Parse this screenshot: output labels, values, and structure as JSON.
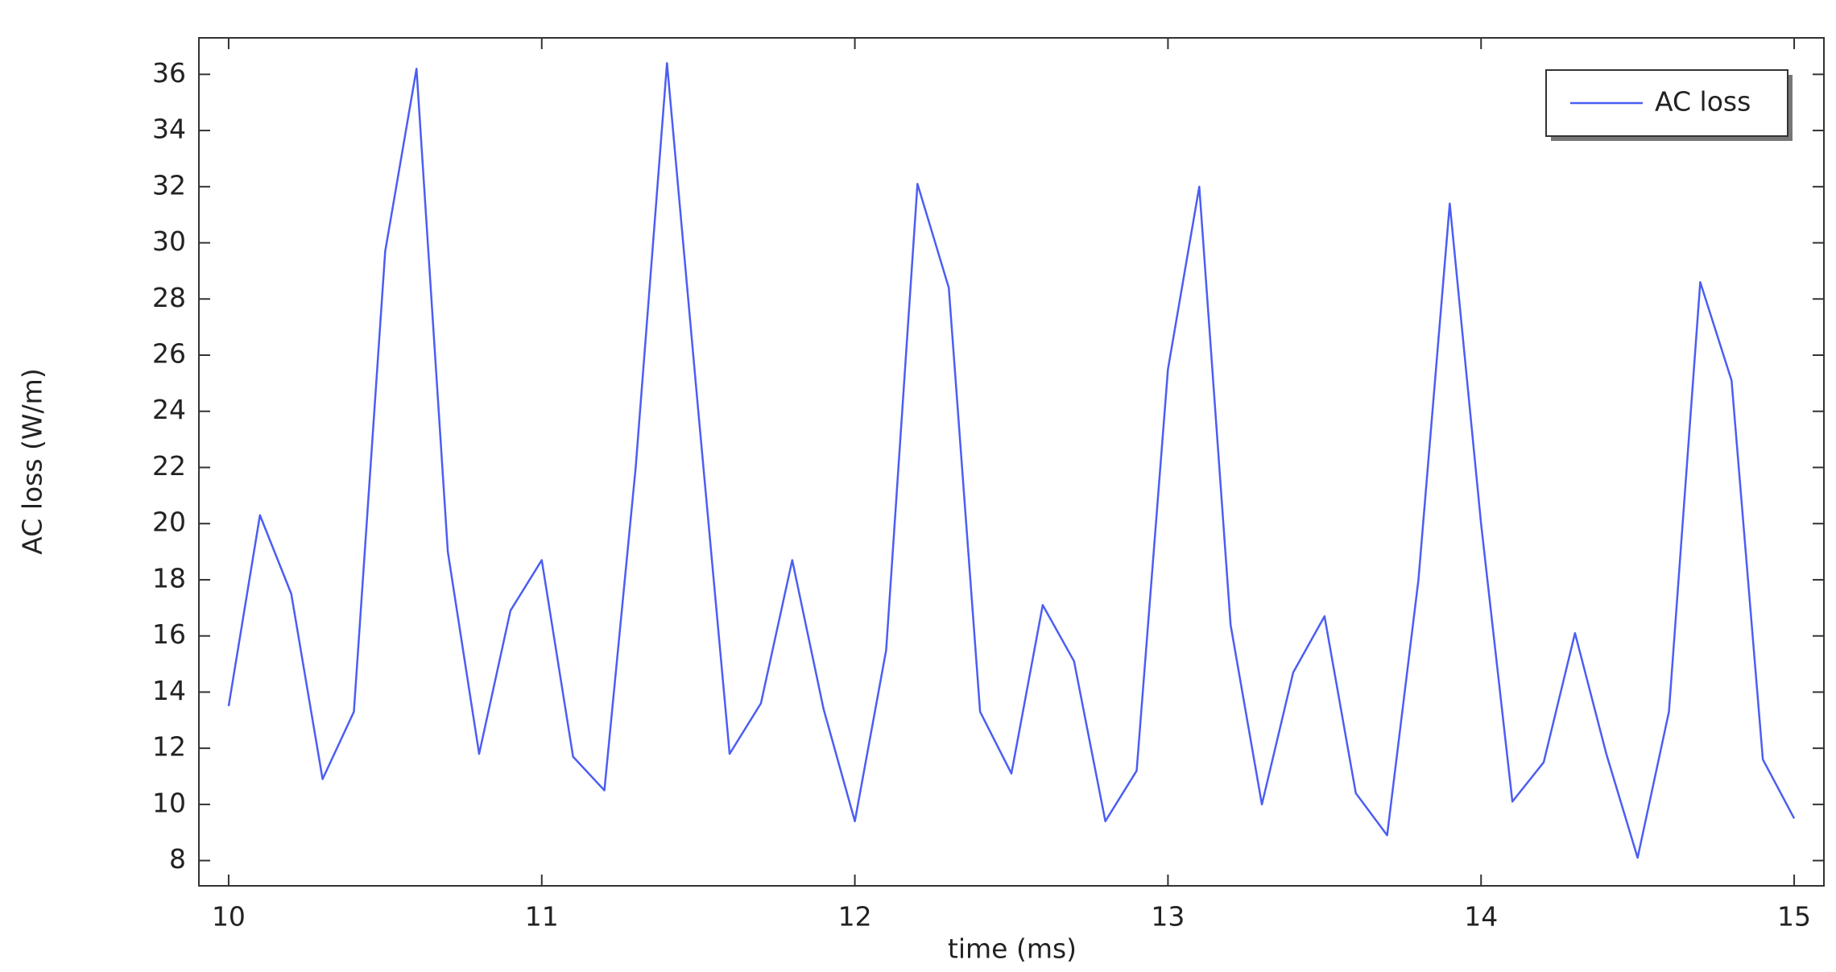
{
  "chart_data": {
    "type": "line",
    "xlabel": "time (ms)",
    "ylabel": "AC loss (W/m)",
    "x": [
      10.0,
      10.1,
      10.2,
      10.3,
      10.4,
      10.5,
      10.6,
      10.7,
      10.8,
      10.9,
      11.0,
      11.1,
      11.2,
      11.3,
      11.4,
      11.5,
      11.6,
      11.7,
      11.8,
      11.9,
      12.0,
      12.1,
      12.2,
      12.3,
      12.4,
      12.5,
      12.6,
      12.7,
      12.8,
      12.9,
      13.0,
      13.1,
      13.2,
      13.3,
      13.4,
      13.5,
      13.6,
      13.7,
      13.8,
      13.9,
      14.0,
      14.1,
      14.2,
      14.3,
      14.4,
      14.5,
      14.6,
      14.7,
      14.8,
      14.9,
      15.0
    ],
    "series": [
      {
        "name": "AC loss",
        "color": "#4b5ef2",
        "values": [
          13.5,
          20.3,
          17.5,
          10.9,
          13.3,
          29.7,
          36.2,
          19.0,
          11.8,
          16.9,
          18.7,
          11.7,
          10.5,
          22.0,
          36.4,
          24.0,
          11.8,
          13.6,
          18.7,
          13.4,
          9.4,
          15.5,
          32.1,
          28.4,
          13.3,
          11.1,
          17.1,
          15.1,
          9.4,
          11.2,
          25.5,
          32.0,
          16.4,
          10.0,
          14.7,
          16.7,
          10.4,
          8.9,
          18.0,
          31.4,
          20.0,
          10.1,
          11.5,
          16.1,
          11.8,
          8.1,
          13.3,
          28.6,
          25.1,
          11.6,
          9.5
        ]
      }
    ],
    "xlim": [
      9.905,
      15.095
    ],
    "xticks": [
      10,
      11,
      12,
      13,
      14,
      15
    ],
    "ylim": [
      7.1,
      37.3
    ],
    "yticks": [
      8,
      10,
      12,
      14,
      16,
      18,
      20,
      22,
      24,
      26,
      28,
      30,
      32,
      34,
      36
    ],
    "legend": "upper right"
  }
}
